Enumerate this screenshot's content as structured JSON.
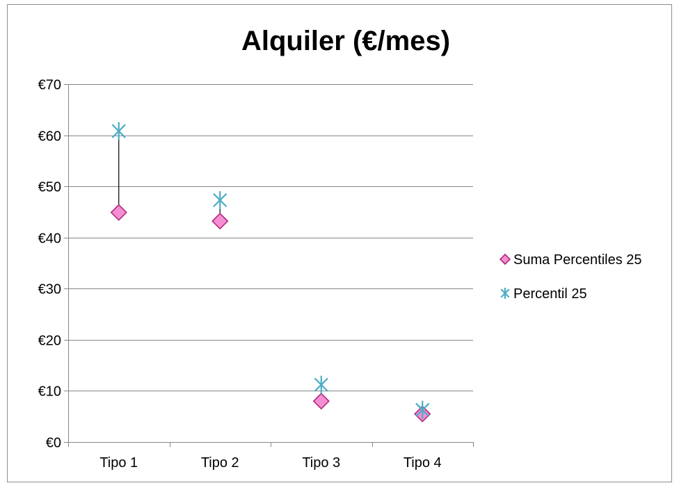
{
  "chart_data": {
    "type": "scatter",
    "title": "Alquiler (€/mes)",
    "xlabel": "",
    "ylabel": "",
    "categories": [
      "Tipo 1",
      "Tipo 2",
      "Tipo 3",
      "Tipo 4"
    ],
    "y_ticks": [
      "€0",
      "€10",
      "€20",
      "€30",
      "€40",
      "€50",
      "€60",
      "€70"
    ],
    "ylim": [
      0,
      70
    ],
    "grid": true,
    "legend_position": "right",
    "series": [
      {
        "name": "Suma Percentiles 25",
        "marker": "diamond",
        "color": "#f58fd2",
        "stroke": "#b0287e",
        "values": [
          44.9,
          43.2,
          8.0,
          5.5
        ]
      },
      {
        "name": "Percentil 25",
        "marker": "asterisk",
        "color": "#4bacc6",
        "values": [
          60.8,
          47.3,
          11.2,
          6.3
        ]
      }
    ],
    "connector_lines": true
  }
}
